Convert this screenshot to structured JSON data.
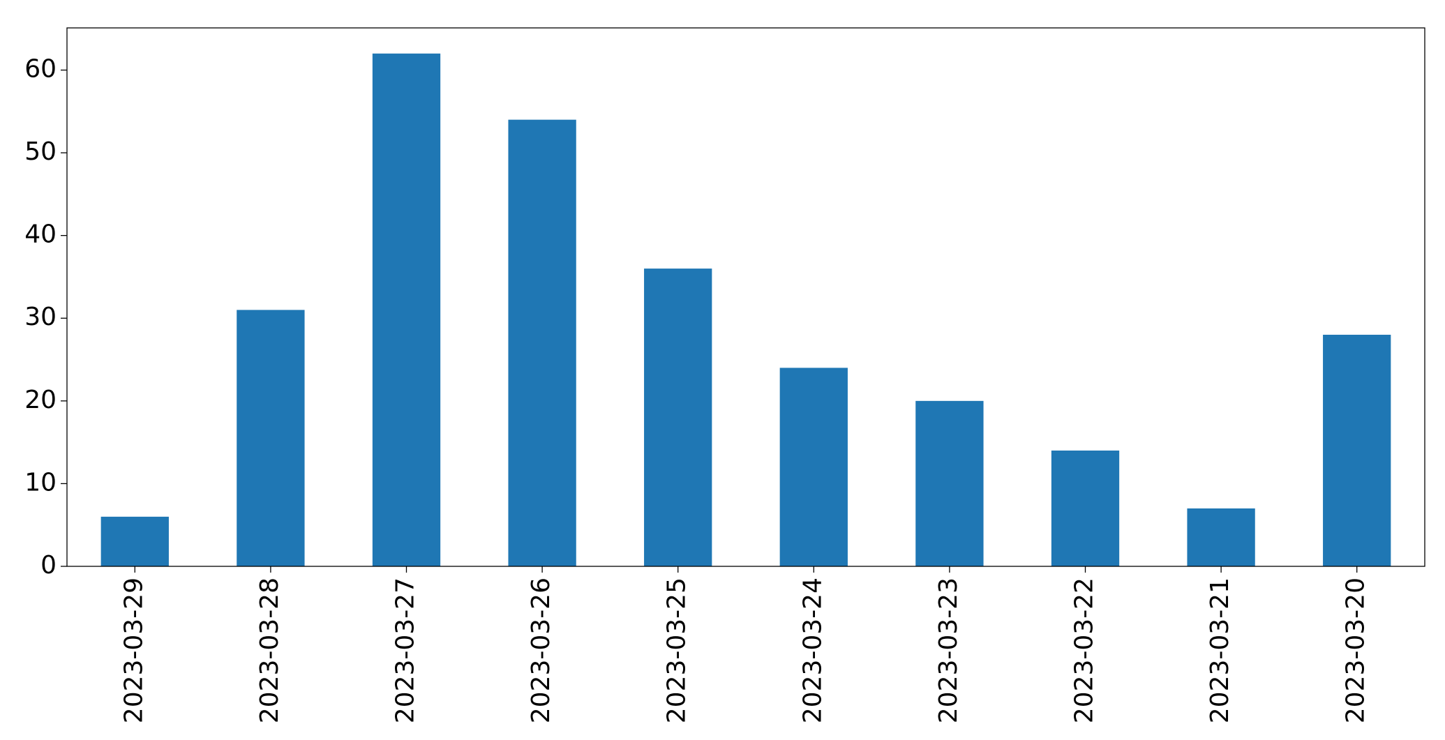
{
  "chart_data": {
    "type": "bar",
    "categories": [
      "2023-03-29",
      "2023-03-28",
      "2023-03-27",
      "2023-03-26",
      "2023-03-25",
      "2023-03-24",
      "2023-03-23",
      "2023-03-22",
      "2023-03-21",
      "2023-03-20"
    ],
    "values": [
      6,
      31,
      62,
      54,
      36,
      24,
      20,
      14,
      7,
      28
    ],
    "color": "#1f77b4",
    "ylim": [
      0,
      65.1
    ],
    "yticks": [
      0,
      10,
      20,
      30,
      40,
      50,
      60
    ],
    "grid": false
  }
}
